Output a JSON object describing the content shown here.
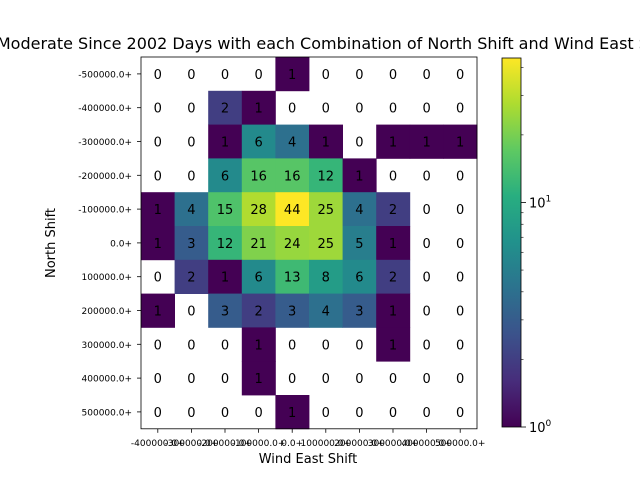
{
  "chart_data": {
    "type": "heatmap",
    "title": "Moderate Since 2002 Days with each Combination of North Shift and Wind East Shift",
    "xlabel": "Wind East Shift",
    "ylabel": "North Shift",
    "x_categories": [
      "-400000.0+",
      "-300000.0+",
      "-200000.0+",
      "-100000.0+",
      "0.0+",
      "100000.0+",
      "200000.0+",
      "300000.0+",
      "400000.0+",
      "500000.0+"
    ],
    "y_categories": [
      "-500000.0+",
      "-400000.0+",
      "-300000.0+",
      "-200000.0+",
      "-100000.0+",
      "0.0+",
      "100000.0+",
      "200000.0+",
      "300000.0+",
      "400000.0+",
      "500000.0+"
    ],
    "values": [
      [
        0,
        0,
        0,
        0,
        1,
        0,
        0,
        0,
        0,
        0
      ],
      [
        0,
        0,
        2,
        1,
        0,
        0,
        0,
        0,
        0,
        0
      ],
      [
        0,
        0,
        1,
        6,
        4,
        1,
        0,
        1,
        1,
        1
      ],
      [
        0,
        0,
        6,
        16,
        16,
        12,
        1,
        0,
        0,
        0
      ],
      [
        1,
        4,
        15,
        28,
        44,
        25,
        4,
        2,
        0,
        0
      ],
      [
        1,
        3,
        12,
        21,
        24,
        25,
        5,
        1,
        0,
        0
      ],
      [
        0,
        2,
        1,
        6,
        13,
        8,
        6,
        2,
        0,
        0
      ],
      [
        1,
        0,
        3,
        2,
        3,
        4,
        3,
        1,
        0,
        0
      ],
      [
        0,
        0,
        0,
        1,
        0,
        0,
        0,
        1,
        0,
        0
      ],
      [
        0,
        0,
        0,
        1,
        0,
        0,
        0,
        0,
        0,
        0
      ],
      [
        0,
        0,
        0,
        0,
        1,
        0,
        0,
        0,
        0,
        0
      ]
    ],
    "colorbar": {
      "scale": "log",
      "range": [
        1,
        44
      ],
      "tick_labels": [
        {
          "value": 1,
          "base": "10",
          "exp": "0"
        },
        {
          "value": 10,
          "base": "10",
          "exp": "1"
        }
      ],
      "colormap": "viridis"
    }
  }
}
